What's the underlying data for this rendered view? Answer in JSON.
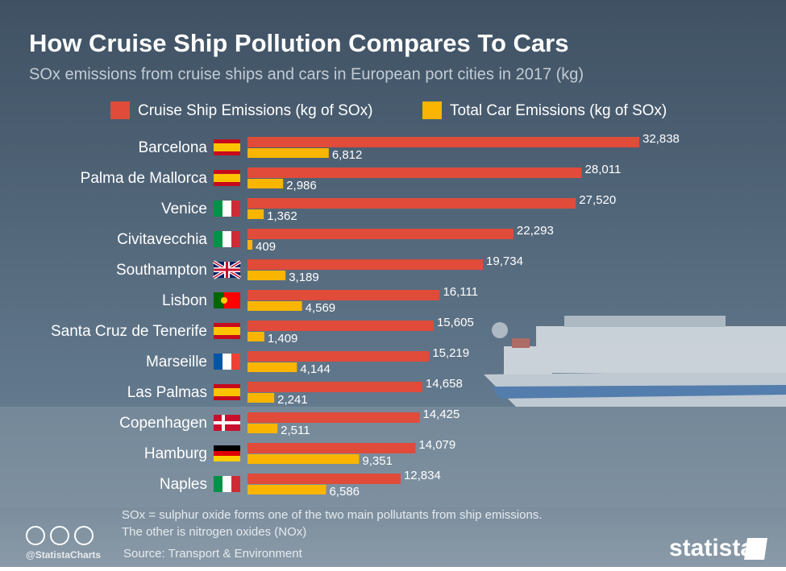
{
  "chart_data": {
    "type": "hbar",
    "title": "How Cruise Ship Pollution Compares To Cars",
    "subtitle": "SOx emissions from cruise ships and cars in European port cities in 2017 (kg)",
    "categories": [
      "Barcelona",
      "Palma de Mallorca",
      "Venice",
      "Civitavecchia",
      "Southampton",
      "Lisbon",
      "Santa Cruz de Tenerife",
      "Marseille",
      "Las Palmas",
      "Copenhagen",
      "Hamburg",
      "Naples"
    ],
    "series": [
      {
        "name": "Cruise Ship Emissions (kg of SOx)",
        "color": "#e04b3a",
        "values": [
          32838,
          28011,
          27520,
          22293,
          19734,
          16111,
          15605,
          15219,
          14658,
          14425,
          14079,
          12834
        ],
        "value_labels": [
          "32,838",
          "28,011",
          "27,520",
          "22,293",
          "19,734",
          "16,111",
          "15,605",
          "15,219",
          "14,658",
          "14,425",
          "14,079",
          "12,834"
        ]
      },
      {
        "name": "Total Car Emissions (kg of SOx)",
        "color": "#f9b500",
        "values": [
          6812,
          2986,
          1362,
          409,
          3189,
          4569,
          1409,
          4144,
          2241,
          2511,
          9351,
          6586
        ],
        "value_labels": [
          "6,812",
          "2,986",
          "1,362",
          "409",
          "3,189",
          "4,569",
          "1,409",
          "4,144",
          "2,241",
          "2,511",
          "9,351",
          "6,586"
        ]
      }
    ]
  },
  "footer": {
    "note": [
      "SOx = sulphur oxide forms one of the two main pollutants from ship emissions.",
      "The other is nitrogen oxides (NOx)"
    ],
    "source": "Source: Transport & Environment",
    "handle": "@StatistaCharts",
    "brand": "statista"
  }
}
